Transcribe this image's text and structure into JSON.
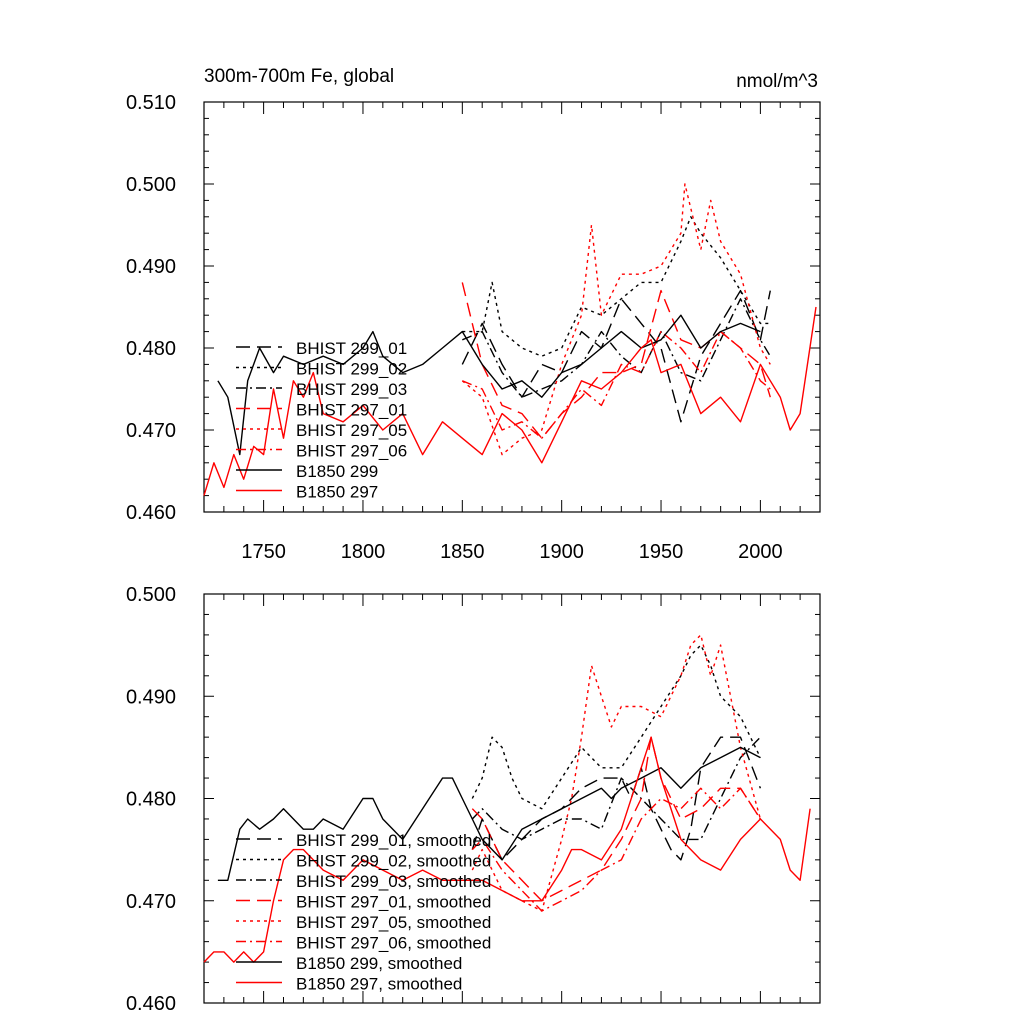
{
  "chart_data": [
    {
      "type": "line",
      "title": "300m-700m Fe, global",
      "units": "nmol/m^3",
      "xlim": [
        1720,
        2030
      ],
      "ylim": [
        0.46,
        0.51
      ],
      "xticks": [
        1750,
        1800,
        1850,
        1900,
        1950,
        2000
      ],
      "yticks": [
        0.46,
        0.47,
        0.48,
        0.49,
        0.5,
        0.51
      ],
      "ytick_labels": [
        "0.460",
        "0.470",
        "0.480",
        "0.490",
        "0.500",
        "0.510"
      ],
      "legend_position": "lower-left",
      "series": [
        {
          "name": "BHIST 299_01",
          "color": "#000000",
          "dash": "14 7",
          "x": [
            1850,
            1860,
            1870,
            1880,
            1890,
            1900,
            1910,
            1920,
            1930,
            1940,
            1950,
            1960,
            1970,
            1980,
            1990,
            2000,
            2005
          ],
          "y": [
            0.478,
            0.483,
            0.478,
            0.474,
            0.478,
            0.477,
            0.482,
            0.48,
            0.486,
            0.483,
            0.48,
            0.471,
            0.479,
            0.483,
            0.487,
            0.481,
            0.487
          ]
        },
        {
          "name": "BHIST 299_02",
          "color": "#000000",
          "dash": "3 4",
          "x": [
            1850,
            1860,
            1865,
            1870,
            1880,
            1890,
            1900,
            1910,
            1920,
            1930,
            1940,
            1950,
            1960,
            1965,
            1970,
            1980,
            1990,
            2000,
            2005
          ],
          "y": [
            0.482,
            0.482,
            0.488,
            0.482,
            0.48,
            0.479,
            0.48,
            0.485,
            0.484,
            0.486,
            0.488,
            0.488,
            0.493,
            0.496,
            0.494,
            0.491,
            0.487,
            0.483,
            0.483
          ]
        },
        {
          "name": "BHIST 299_03",
          "color": "#000000",
          "dash": "10 4 2 4",
          "x": [
            1850,
            1860,
            1870,
            1880,
            1890,
            1900,
            1910,
            1920,
            1930,
            1940,
            1950,
            1960,
            1970,
            1980,
            1990,
            2000,
            2005
          ],
          "y": [
            0.481,
            0.482,
            0.477,
            0.474,
            0.475,
            0.476,
            0.478,
            0.482,
            0.479,
            0.477,
            0.482,
            0.477,
            0.476,
            0.481,
            0.486,
            0.481,
            0.479
          ]
        },
        {
          "name": "BHIST 297_01",
          "color": "#ff0000",
          "dash": "14 7",
          "x": [
            1850,
            1860,
            1870,
            1880,
            1890,
            1900,
            1910,
            1920,
            1930,
            1940,
            1950,
            1960,
            1970,
            1980,
            1990,
            2000,
            2005
          ],
          "y": [
            0.488,
            0.478,
            0.473,
            0.472,
            0.469,
            0.472,
            0.474,
            0.477,
            0.477,
            0.478,
            0.487,
            0.481,
            0.48,
            0.482,
            0.48,
            0.478,
            0.474
          ]
        },
        {
          "name": "BHIST 297_05",
          "color": "#ff0000",
          "dash": "3 4",
          "x": [
            1850,
            1860,
            1870,
            1880,
            1890,
            1900,
            1910,
            1915,
            1920,
            1930,
            1940,
            1950,
            1960,
            1962,
            1970,
            1975,
            1980,
            1990,
            2000,
            2005
          ],
          "y": [
            0.476,
            0.474,
            0.467,
            0.469,
            0.47,
            0.478,
            0.484,
            0.495,
            0.484,
            0.489,
            0.489,
            0.49,
            0.494,
            0.5,
            0.492,
            0.498,
            0.493,
            0.489,
            0.48,
            0.478
          ]
        },
        {
          "name": "BHIST 297_06",
          "color": "#ff0000",
          "dash": "10 4 2 4",
          "x": [
            1850,
            1860,
            1870,
            1880,
            1890,
            1900,
            1910,
            1920,
            1930,
            1940,
            1950,
            1960,
            1970,
            1980,
            1990,
            2000,
            2005
          ],
          "y": [
            0.476,
            0.475,
            0.47,
            0.471,
            0.469,
            0.472,
            0.475,
            0.473,
            0.478,
            0.477,
            0.482,
            0.48,
            0.477,
            0.482,
            0.48,
            0.476,
            0.475
          ]
        },
        {
          "name": "B1850 299",
          "color": "#000000",
          "dash": "",
          "x": [
            1727,
            1732,
            1738,
            1742,
            1748,
            1755,
            1760,
            1770,
            1780,
            1790,
            1800,
            1805,
            1810,
            1820,
            1830,
            1840,
            1850,
            1860,
            1870,
            1880,
            1890,
            1900,
            1910,
            1920,
            1930,
            1940,
            1950,
            1960,
            1970,
            1980,
            1990,
            2000
          ],
          "y": [
            0.476,
            0.474,
            0.467,
            0.476,
            0.48,
            0.477,
            0.479,
            0.478,
            0.479,
            0.478,
            0.48,
            0.482,
            0.479,
            0.477,
            0.478,
            0.48,
            0.482,
            0.478,
            0.475,
            0.476,
            0.474,
            0.477,
            0.478,
            0.48,
            0.482,
            0.48,
            0.481,
            0.484,
            0.48,
            0.482,
            0.483,
            0.482
          ]
        },
        {
          "name": "B1850 297",
          "color": "#ff0000",
          "dash": "",
          "x": [
            1720,
            1725,
            1730,
            1735,
            1740,
            1745,
            1750,
            1755,
            1760,
            1765,
            1770,
            1775,
            1780,
            1790,
            1800,
            1810,
            1820,
            1830,
            1840,
            1850,
            1860,
            1870,
            1880,
            1890,
            1900,
            1910,
            1920,
            1930,
            1940,
            1945,
            1950,
            1960,
            1970,
            1980,
            1990,
            2000,
            2005,
            2010,
            2015,
            2020,
            2028
          ],
          "y": [
            0.462,
            0.466,
            0.463,
            0.467,
            0.464,
            0.468,
            0.467,
            0.475,
            0.469,
            0.476,
            0.474,
            0.477,
            0.472,
            0.471,
            0.473,
            0.47,
            0.472,
            0.467,
            0.471,
            0.469,
            0.467,
            0.472,
            0.47,
            0.466,
            0.471,
            0.476,
            0.475,
            0.477,
            0.48,
            0.481,
            0.477,
            0.478,
            0.472,
            0.474,
            0.471,
            0.478,
            0.476,
            0.474,
            0.47,
            0.472,
            0.485
          ]
        }
      ]
    },
    {
      "type": "line",
      "title": "",
      "xlim": [
        1720,
        2030
      ],
      "ylim": [
        0.46,
        0.5
      ],
      "xticks": [
        1750,
        1800,
        1850,
        1900,
        1950,
        2000
      ],
      "yticks": [
        0.46,
        0.47,
        0.48,
        0.49,
        0.5
      ],
      "ytick_labels": [
        "0.460",
        "0.470",
        "0.480",
        "0.490",
        "0.500"
      ],
      "legend_position": "lower-left",
      "series": [
        {
          "name": "BHIST 299_01, smoothed",
          "color": "#000000",
          "dash": "14 7",
          "x": [
            1855,
            1860,
            1865,
            1870,
            1875,
            1880,
            1890,
            1900,
            1910,
            1920,
            1930,
            1935,
            1940,
            1945,
            1950,
            1955,
            1960,
            1965,
            1970,
            1980,
            1990,
            2000
          ],
          "y": [
            0.475,
            0.478,
            0.476,
            0.474,
            0.475,
            0.476,
            0.478,
            0.479,
            0.481,
            0.482,
            0.482,
            0.48,
            0.483,
            0.479,
            0.477,
            0.475,
            0.474,
            0.477,
            0.483,
            0.486,
            0.486,
            0.481
          ]
        },
        {
          "name": "BHIST 299_02, smoothed",
          "color": "#000000",
          "dash": "3 4",
          "x": [
            1855,
            1860,
            1865,
            1870,
            1875,
            1880,
            1890,
            1900,
            1910,
            1920,
            1930,
            1940,
            1950,
            1960,
            1965,
            1970,
            1975,
            1980,
            1990,
            2000
          ],
          "y": [
            0.48,
            0.482,
            0.486,
            0.485,
            0.482,
            0.48,
            0.479,
            0.482,
            0.485,
            0.483,
            0.483,
            0.486,
            0.489,
            0.492,
            0.494,
            0.495,
            0.493,
            0.49,
            0.488,
            0.484
          ]
        },
        {
          "name": "BHIST 299_03, smoothed",
          "color": "#000000",
          "dash": "10 4 2 4",
          "x": [
            1855,
            1860,
            1870,
            1880,
            1890,
            1900,
            1910,
            1920,
            1930,
            1940,
            1950,
            1960,
            1970,
            1980,
            1990,
            2000
          ],
          "y": [
            0.478,
            0.479,
            0.477,
            0.476,
            0.477,
            0.478,
            0.478,
            0.477,
            0.482,
            0.48,
            0.478,
            0.476,
            0.476,
            0.48,
            0.484,
            0.486
          ]
        },
        {
          "name": "BHIST 297_01, smoothed",
          "color": "#ff0000",
          "dash": "14 7",
          "x": [
            1855,
            1860,
            1870,
            1880,
            1890,
            1900,
            1910,
            1920,
            1930,
            1940,
            1945,
            1950,
            1960,
            1970,
            1980,
            1990,
            2000
          ],
          "y": [
            0.479,
            0.478,
            0.474,
            0.472,
            0.47,
            0.471,
            0.472,
            0.473,
            0.476,
            0.48,
            0.486,
            0.482,
            0.478,
            0.479,
            0.481,
            0.481,
            0.478
          ]
        },
        {
          "name": "BHIST 297_05, smoothed",
          "color": "#ff0000",
          "dash": "3 4",
          "x": [
            1855,
            1860,
            1870,
            1880,
            1890,
            1900,
            1905,
            1910,
            1915,
            1920,
            1925,
            1930,
            1940,
            1950,
            1960,
            1965,
            1970,
            1975,
            1980,
            1990,
            2000
          ],
          "y": [
            0.473,
            0.475,
            0.471,
            0.47,
            0.469,
            0.476,
            0.48,
            0.486,
            0.493,
            0.49,
            0.487,
            0.489,
            0.489,
            0.488,
            0.492,
            0.495,
            0.496,
            0.492,
            0.495,
            0.485,
            0.478
          ]
        },
        {
          "name": "BHIST 297_06, smoothed",
          "color": "#ff0000",
          "dash": "10 4 2 4",
          "x": [
            1855,
            1860,
            1870,
            1880,
            1890,
            1900,
            1910,
            1920,
            1930,
            1940,
            1950,
            1960,
            1970,
            1980,
            1990,
            2000
          ],
          "y": [
            0.475,
            0.476,
            0.473,
            0.471,
            0.469,
            0.47,
            0.471,
            0.473,
            0.474,
            0.478,
            0.48,
            0.479,
            0.481,
            0.479,
            0.481,
            0.478
          ]
        },
        {
          "name": "B1850 299, smoothed",
          "color": "#000000",
          "dash": "",
          "x": [
            1727,
            1732,
            1738,
            1742,
            1748,
            1755,
            1760,
            1770,
            1775,
            1780,
            1790,
            1800,
            1805,
            1810,
            1815,
            1820,
            1830,
            1840,
            1845,
            1850,
            1855,
            1860,
            1870,
            1880,
            1890,
            1900,
            1910,
            1920,
            1925,
            1930,
            1940,
            1950,
            1960,
            1970,
            1980,
            1990,
            2000
          ],
          "y": [
            0.472,
            0.472,
            0.477,
            0.478,
            0.477,
            0.478,
            0.479,
            0.477,
            0.477,
            0.478,
            0.477,
            0.48,
            0.48,
            0.478,
            0.477,
            0.476,
            0.479,
            0.482,
            0.482,
            0.48,
            0.478,
            0.476,
            0.474,
            0.477,
            0.478,
            0.479,
            0.48,
            0.481,
            0.48,
            0.481,
            0.482,
            0.483,
            0.481,
            0.483,
            0.484,
            0.485,
            0.484
          ]
        },
        {
          "name": "B1850 297, smoothed",
          "color": "#ff0000",
          "dash": "",
          "x": [
            1720,
            1725,
            1730,
            1735,
            1740,
            1745,
            1750,
            1755,
            1760,
            1765,
            1770,
            1775,
            1780,
            1790,
            1800,
            1810,
            1820,
            1830,
            1840,
            1850,
            1860,
            1870,
            1880,
            1890,
            1900,
            1905,
            1910,
            1920,
            1930,
            1940,
            1945,
            1950,
            1960,
            1970,
            1980,
            1990,
            2000,
            2010,
            2015,
            2020,
            2025
          ],
          "y": [
            0.464,
            0.465,
            0.465,
            0.464,
            0.465,
            0.464,
            0.465,
            0.47,
            0.474,
            0.475,
            0.475,
            0.474,
            0.473,
            0.472,
            0.474,
            0.473,
            0.472,
            0.473,
            0.472,
            0.472,
            0.472,
            0.471,
            0.47,
            0.47,
            0.473,
            0.475,
            0.475,
            0.474,
            0.477,
            0.483,
            0.486,
            0.482,
            0.476,
            0.474,
            0.473,
            0.476,
            0.478,
            0.476,
            0.473,
            0.472,
            0.479
          ]
        }
      ]
    }
  ]
}
